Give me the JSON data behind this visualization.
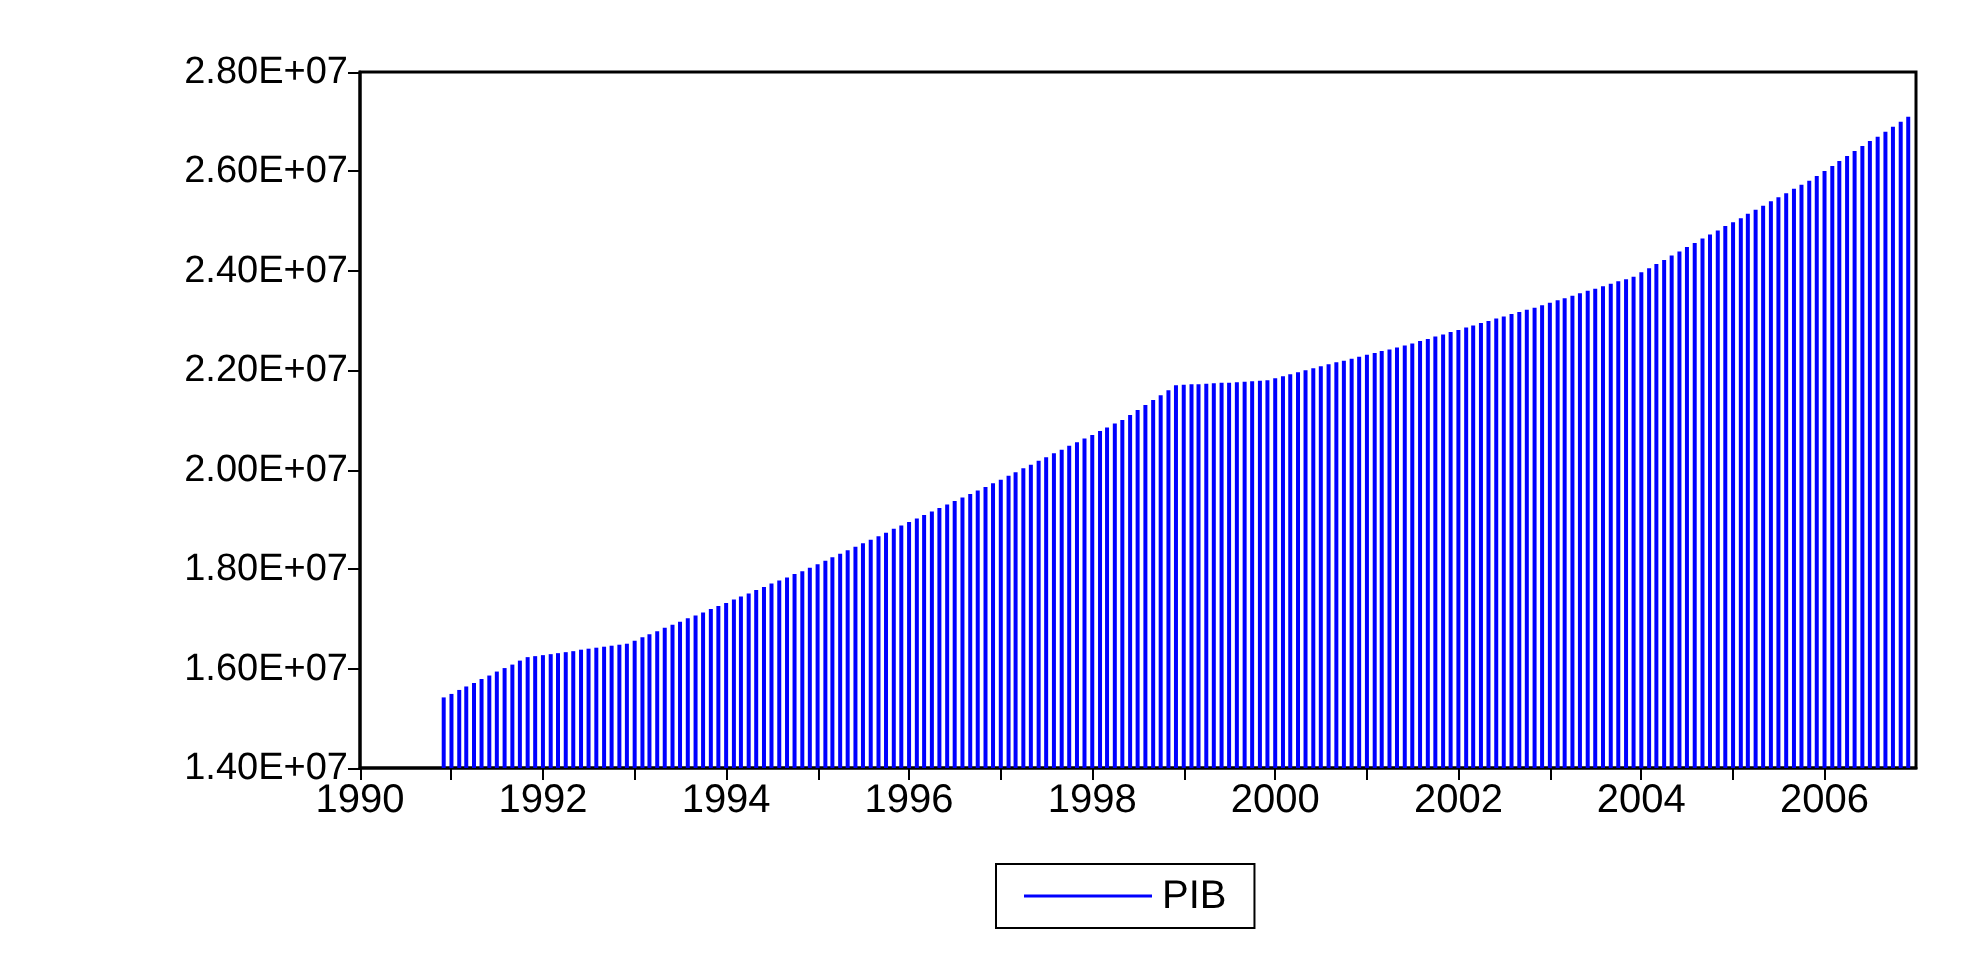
{
  "chart_data": {
    "type": "bar",
    "x": [
      "1990-12",
      "1991-01",
      "1991-02",
      "1991-03",
      "1991-04",
      "1991-05",
      "1991-06",
      "1991-07",
      "1991-08",
      "1991-09",
      "1991-10",
      "1991-11",
      "1991-12",
      "1992-01",
      "1992-02",
      "1992-03",
      "1992-04",
      "1992-05",
      "1992-06",
      "1992-07",
      "1992-08",
      "1992-09",
      "1992-10",
      "1992-11",
      "1992-12",
      "1993-01",
      "1993-02",
      "1993-03",
      "1993-04",
      "1993-05",
      "1993-06",
      "1993-07",
      "1993-08",
      "1993-09",
      "1993-10",
      "1993-11",
      "1993-12",
      "1994-01",
      "1994-02",
      "1994-03",
      "1994-04",
      "1994-05",
      "1994-06",
      "1994-07",
      "1994-08",
      "1994-09",
      "1994-10",
      "1994-11",
      "1994-12",
      "1995-01",
      "1995-02",
      "1995-03",
      "1995-04",
      "1995-05",
      "1995-06",
      "1995-07",
      "1995-08",
      "1995-09",
      "1995-10",
      "1995-11",
      "1995-12",
      "1996-01",
      "1996-02",
      "1996-03",
      "1996-04",
      "1996-05",
      "1996-06",
      "1996-07",
      "1996-08",
      "1996-09",
      "1996-10",
      "1996-11",
      "1996-12",
      "1997-01",
      "1997-02",
      "1997-03",
      "1997-04",
      "1997-05",
      "1997-06",
      "1997-07",
      "1997-08",
      "1997-09",
      "1997-10",
      "1997-11",
      "1997-12",
      "1998-01",
      "1998-02",
      "1998-03",
      "1998-04",
      "1998-05",
      "1998-06",
      "1998-07",
      "1998-08",
      "1998-09",
      "1998-10",
      "1998-11",
      "1998-12",
      "1999-01",
      "1999-02",
      "1999-03",
      "1999-04",
      "1999-05",
      "1999-06",
      "1999-07",
      "1999-08",
      "1999-09",
      "1999-10",
      "1999-11",
      "1999-12",
      "2000-01",
      "2000-02",
      "2000-03",
      "2000-04",
      "2000-05",
      "2000-06",
      "2000-07",
      "2000-08",
      "2000-09",
      "2000-10",
      "2000-11",
      "2000-12",
      "2001-01",
      "2001-02",
      "2001-03",
      "2001-04",
      "2001-05",
      "2001-06",
      "2001-07",
      "2001-08",
      "2001-09",
      "2001-10",
      "2001-11",
      "2001-12",
      "2002-01",
      "2002-02",
      "2002-03",
      "2002-04",
      "2002-05",
      "2002-06",
      "2002-07",
      "2002-08",
      "2002-09",
      "2002-10",
      "2002-11",
      "2002-12",
      "2003-01",
      "2003-02",
      "2003-03",
      "2003-04",
      "2003-05",
      "2003-06",
      "2003-07",
      "2003-08",
      "2003-09",
      "2003-10",
      "2003-11",
      "2003-12",
      "2004-01",
      "2004-02",
      "2004-03",
      "2004-04",
      "2004-05",
      "2004-06",
      "2004-07",
      "2004-08",
      "2004-09",
      "2004-10",
      "2004-11",
      "2004-12",
      "2005-01",
      "2005-02",
      "2005-03",
      "2005-04",
      "2005-05",
      "2005-06",
      "2005-07",
      "2005-08",
      "2005-09",
      "2005-10",
      "2005-11",
      "2005-12",
      "2006-01",
      "2006-02",
      "2006-03",
      "2006-04",
      "2006-05",
      "2006-06",
      "2006-07",
      "2006-08",
      "2006-09",
      "2006-10",
      "2006-11",
      "2006-12"
    ],
    "series": [
      {
        "name": "PIB",
        "color": "#0000ff",
        "values": [
          15420000,
          15490000,
          15570000,
          15640000,
          15710000,
          15790000,
          15860000,
          15940000,
          16010000,
          16080000,
          16160000,
          16230000,
          16250000,
          16270000,
          16290000,
          16310000,
          16330000,
          16350000,
          16380000,
          16400000,
          16420000,
          16440000,
          16460000,
          16480000,
          16500000,
          16560000,
          16630000,
          16690000,
          16750000,
          16820000,
          16880000,
          16940000,
          17010000,
          17070000,
          17130000,
          17200000,
          17260000,
          17320000,
          17390000,
          17450000,
          17510000,
          17580000,
          17640000,
          17710000,
          17770000,
          17830000,
          17900000,
          17960000,
          18030000,
          18100000,
          18170000,
          18240000,
          18310000,
          18380000,
          18450000,
          18520000,
          18590000,
          18660000,
          18730000,
          18810000,
          18880000,
          18950000,
          19020000,
          19090000,
          19160000,
          19230000,
          19300000,
          19370000,
          19440000,
          19510000,
          19580000,
          19650000,
          19730000,
          19800000,
          19880000,
          19950000,
          20030000,
          20100000,
          20180000,
          20250000,
          20330000,
          20400000,
          20480000,
          20550000,
          20630000,
          20700000,
          20780000,
          20850000,
          20930000,
          21000000,
          21100000,
          21200000,
          21300000,
          21400000,
          21500000,
          21600000,
          21700000,
          21710000,
          21720000,
          21720000,
          21730000,
          21740000,
          21750000,
          21750000,
          21760000,
          21770000,
          21780000,
          21790000,
          21800000,
          21840000,
          21880000,
          21920000,
          21960000,
          22000000,
          22040000,
          22080000,
          22120000,
          22160000,
          22190000,
          22230000,
          22270000,
          22310000,
          22350000,
          22390000,
          22420000,
          22460000,
          22500000,
          22540000,
          22590000,
          22630000,
          22680000,
          22720000,
          22770000,
          22810000,
          22860000,
          22900000,
          22950000,
          22990000,
          23040000,
          23080000,
          23130000,
          23170000,
          23220000,
          23260000,
          23310000,
          23360000,
          23410000,
          23450000,
          23500000,
          23550000,
          23600000,
          23640000,
          23690000,
          23740000,
          23790000,
          23830000,
          23880000,
          23970000,
          24050000,
          24140000,
          24220000,
          24310000,
          24390000,
          24480000,
          24560000,
          24650000,
          24730000,
          24810000,
          24900000,
          24980000,
          25060000,
          25150000,
          25230000,
          25310000,
          25400000,
          25480000,
          25560000,
          25650000,
          25730000,
          25810000,
          25910000,
          26010000,
          26110000,
          26210000,
          26310000,
          26410000,
          26510000,
          26610000,
          26700000,
          26800000,
          26900000,
          27000000,
          27100000
        ]
      }
    ],
    "xlim": [
      "1990-01",
      "2007-01"
    ],
    "xticks": [
      {
        "value": "1990",
        "label": "1990"
      },
      {
        "value": "1991",
        "label": null
      },
      {
        "value": "1992",
        "label": "1992"
      },
      {
        "value": "1993",
        "label": null
      },
      {
        "value": "1994",
        "label": "1994"
      },
      {
        "value": "1995",
        "label": null
      },
      {
        "value": "1996",
        "label": "1996"
      },
      {
        "value": "1997",
        "label": null
      },
      {
        "value": "1998",
        "label": "1998"
      },
      {
        "value": "1999",
        "label": null
      },
      {
        "value": "2000",
        "label": "2000"
      },
      {
        "value": "2001",
        "label": null
      },
      {
        "value": "2002",
        "label": "2002"
      },
      {
        "value": "2003",
        "label": null
      },
      {
        "value": "2004",
        "label": "2004"
      },
      {
        "value": "2005",
        "label": null
      },
      {
        "value": "2006",
        "label": "2006"
      }
    ],
    "ylim": [
      14000000,
      28000000
    ],
    "yticks": [
      {
        "value": 14000000,
        "label": "1.40E+07"
      },
      {
        "value": 16000000,
        "label": "1.60E+07"
      },
      {
        "value": 18000000,
        "label": "1.80E+07"
      },
      {
        "value": 20000000,
        "label": "2.00E+07"
      },
      {
        "value": 22000000,
        "label": "2.20E+07"
      },
      {
        "value": 24000000,
        "label": "2.40E+07"
      },
      {
        "value": 26000000,
        "label": "2.60E+07"
      },
      {
        "value": 28000000,
        "label": "2.80E+07"
      }
    ],
    "grid": false,
    "legend": "bottom"
  }
}
